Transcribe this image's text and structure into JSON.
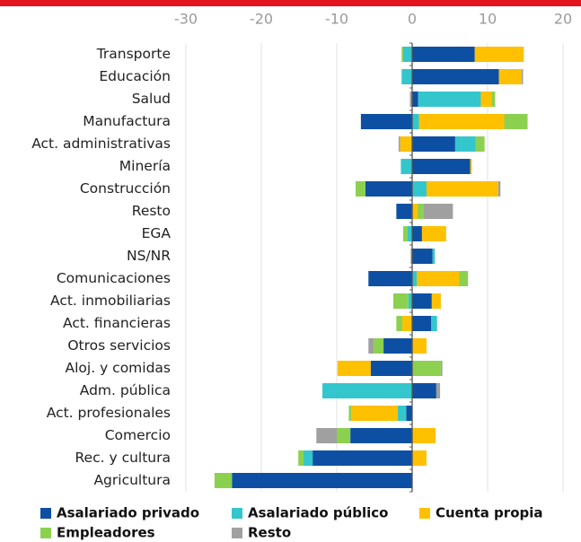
{
  "chart_data": {
    "type": "bar",
    "orientation": "horizontal",
    "stacked": true,
    "categories": [
      "Transporte",
      "Educación",
      "Salud",
      "Manufactura",
      "Act. administrativas",
      "Minería",
      "Construcción",
      "Resto",
      "EGA",
      "NS/NR",
      "Comunicaciones",
      "Act. inmobiliarias",
      "Act. financieras",
      "Otros servicios",
      "Aloj. y comidas",
      "Adm. pública",
      "Act. profesionales",
      "Comercio",
      "Rec. y cultura",
      "Agricultura"
    ],
    "series": [
      {
        "name": "Asalariado privado",
        "color": "#0d4fa3",
        "values": [
          8.3,
          11.5,
          0.8,
          -6.8,
          5.7,
          7.7,
          -6.2,
          -2.1,
          1.3,
          2.7,
          -5.8,
          2.6,
          2.5,
          -3.8,
          -5.5,
          3.2,
          -0.8,
          -8.2,
          -13.2,
          -23.9
        ]
      },
      {
        "name": "Asalariado público",
        "color": "#33c6cc",
        "values": [
          -1.2,
          -1.4,
          8.3,
          0.9,
          2.7,
          -1.5,
          1.9,
          0,
          -0.6,
          0.3,
          0.6,
          -0.5,
          0.8,
          0,
          0,
          -11.9,
          -1.1,
          0,
          -1.2,
          0
        ]
      },
      {
        "name": "Cuenta propia",
        "color": "#ffc000",
        "values": [
          6.5,
          3.0,
          1.4,
          11.3,
          -1.6,
          0.2,
          9.5,
          0.7,
          3.2,
          0,
          5.6,
          1.2,
          -1.3,
          1.9,
          -4.4,
          0,
          -6.2,
          3.1,
          1.9,
          0
        ]
      },
      {
        "name": "Empleadores",
        "color": "#8cd050",
        "values": [
          -0.2,
          0,
          0.5,
          3.1,
          1.2,
          0,
          -1.3,
          0.8,
          -0.6,
          0,
          1.2,
          -2.0,
          -0.8,
          -1.3,
          3.8,
          0,
          -0.3,
          -1.8,
          -0.7,
          -2.3
        ]
      },
      {
        "name": "Resto",
        "color": "#a0a0a0",
        "values": [
          0,
          0.2,
          -0.3,
          0,
          -0.2,
          0,
          0.3,
          3.9,
          0,
          -0.2,
          0,
          0,
          0,
          -0.7,
          0.2,
          0.5,
          0,
          -2.7,
          0,
          0
        ]
      }
    ],
    "xlim": [
      -30,
      20
    ],
    "xticks": [
      -30,
      -20,
      -10,
      0,
      10,
      20
    ],
    "grid": true,
    "legend": "bottom"
  }
}
